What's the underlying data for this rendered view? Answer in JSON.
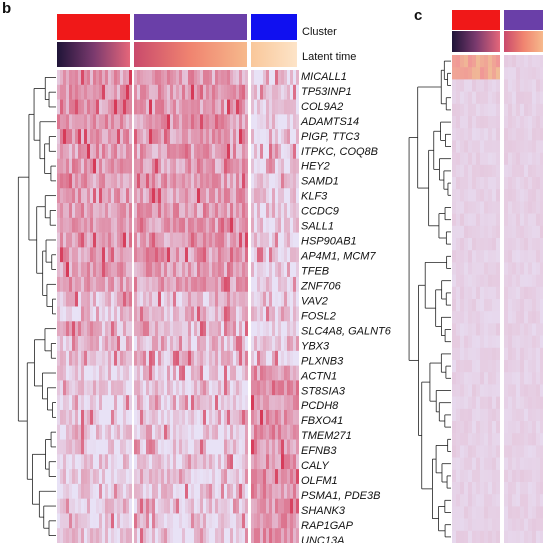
{
  "panels": [
    {
      "label": "b",
      "legend": [
        "Cluster",
        "Latent time"
      ],
      "genes": [
        "MICALL1",
        "TP53INP1",
        "COL9A2",
        "ADAMTS14",
        "PIGP, TTC3",
        "ITPKC, COQ8B",
        "HEY2",
        "SAMD1",
        "KLF3",
        "CCDC9",
        "SALL1",
        "HSP90AB1",
        "AP4M1, MCM7",
        "TFEB",
        "ZNF706",
        "VAV2",
        "FOSL2",
        "SLC4A8, GALNT6",
        "YBX3",
        "PLXNB3",
        "ACTN1",
        "ST8SIA3",
        "PCDH8",
        "FBXO41",
        "TMEM271",
        "EFNB3",
        "CALY",
        "OLFM1",
        "PSMA1, PDE3B",
        "SHANK3",
        "RAP1GAP",
        "UNC13A"
      ]
    },
    {
      "label": "c"
    }
  ]
}
